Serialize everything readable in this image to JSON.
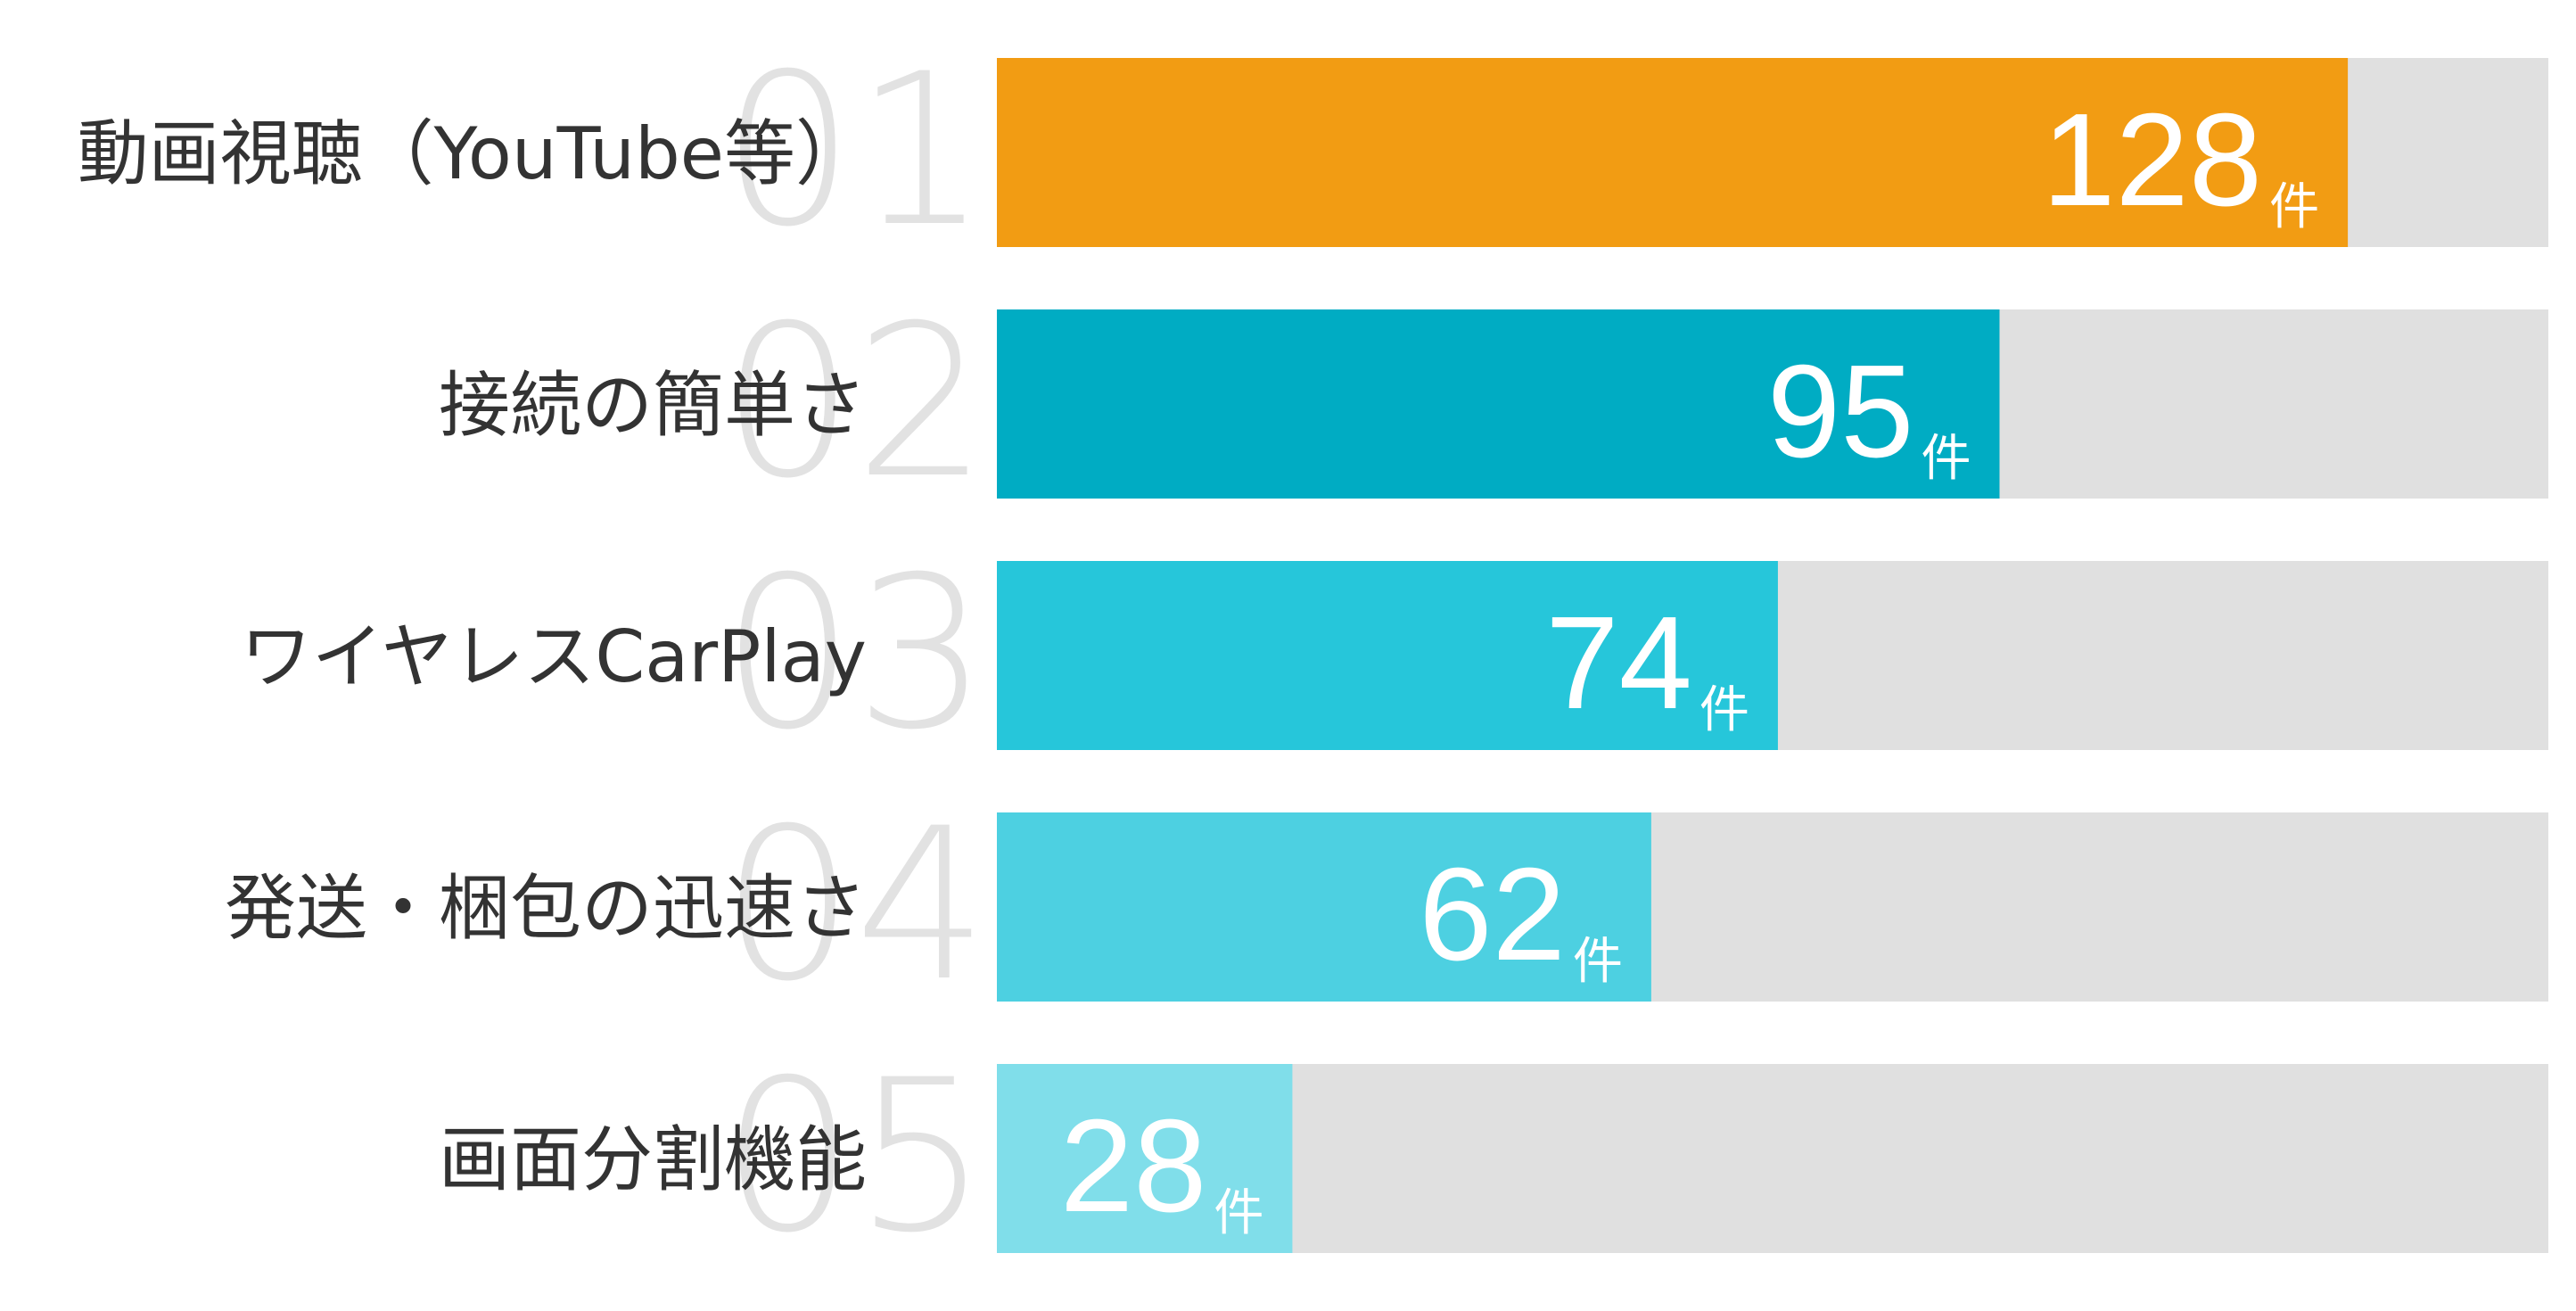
{
  "chart_data": {
    "type": "bar",
    "orientation": "horizontal",
    "categories": [
      "動画視聴（YouTube等）",
      "接続の簡単さ",
      "ワイヤレスCarPlay",
      "発送・梱包の迅速さ",
      "画面分割機能"
    ],
    "ranks": [
      "01",
      "02",
      "03",
      "04",
      "05"
    ],
    "values": [
      128,
      95,
      74,
      62,
      28
    ],
    "unit": "件",
    "colors": [
      "#f29c13",
      "#00acc3",
      "#26c6da",
      "#4dd0e1",
      "#80deea"
    ],
    "track_color": "#e0e0e0",
    "xlim": [
      0,
      147
    ]
  }
}
